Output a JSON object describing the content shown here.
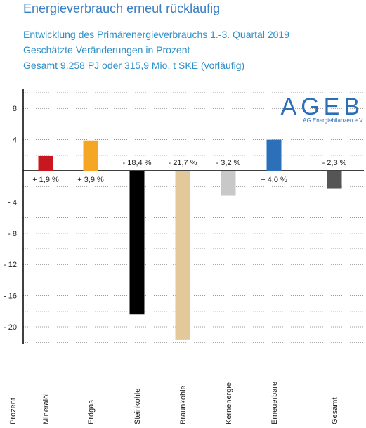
{
  "title": "Energieverbrauch erneut rückläufig",
  "subtitle_lines": [
    "Entwicklung des Primärenergieverbrauchs 1.-3. Quartal 2019",
    "Geschätzte Veränderungen in Prozent",
    "Gesamt 9.258 PJ oder 315,9 Mio. t SKE (vorläufig)"
  ],
  "logo": {
    "text": "AGEB",
    "subtext": "AG Energiebilanzen e.V."
  },
  "chart_data": {
    "type": "bar",
    "title": "Energieverbrauch erneut rückläufig",
    "ylabel": "Prozent",
    "ylim": [
      -22,
      10
    ],
    "yticks": [
      8,
      4,
      -4,
      -8,
      -12,
      -16,
      -20
    ],
    "ytick_labels": [
      "8",
      "4",
      "- 4",
      "- 8",
      "- 12",
      "- 16",
      "- 20"
    ],
    "grid": true,
    "categories": [
      "Mineralöl",
      "Erdgas",
      "Steinkohle",
      "Braunkohle",
      "Kernenergie",
      "Erneuerbare",
      "Gesamt"
    ],
    "values": [
      1.9,
      3.9,
      -18.4,
      -21.7,
      -3.2,
      4.0,
      -2.3
    ],
    "value_labels": [
      "+ 1,9 %",
      "+ 3,9 %",
      "- 18,4 %",
      "- 21,7 %",
      "- 3,2 %",
      "+ 4,0 %",
      "- 2,3 %"
    ],
    "colors": [
      "#c8171e",
      "#f5a623",
      "#000000",
      "#e3c99a",
      "#c8c8c8",
      "#2b70b9",
      "#555555"
    ]
  }
}
